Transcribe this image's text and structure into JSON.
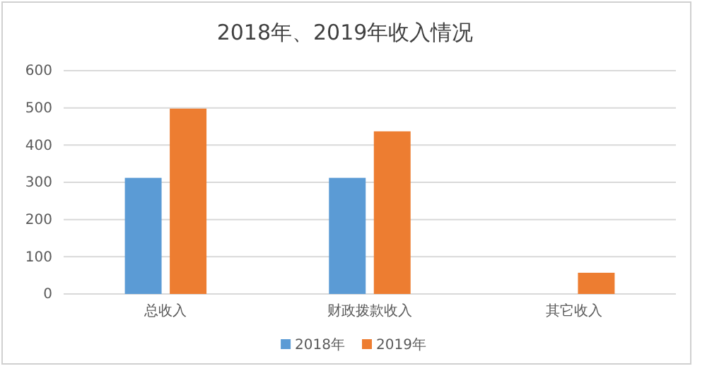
{
  "chart_data": {
    "type": "bar",
    "title": "2018年、2019年收入情况",
    "categories": [
      "总收入",
      "财政拨款收入",
      "其它收入"
    ],
    "series": [
      {
        "name": "2018年",
        "color": "#5b9bd5",
        "values": [
          312,
          312,
          null
        ]
      },
      {
        "name": "2019年",
        "color": "#ed7d31",
        "values": [
          498,
          437,
          57
        ]
      }
    ],
    "ylim": [
      0,
      600
    ],
    "yticks": [
      0,
      100,
      200,
      300,
      400,
      500,
      600
    ],
    "grid": "y",
    "legend": "bottom"
  }
}
